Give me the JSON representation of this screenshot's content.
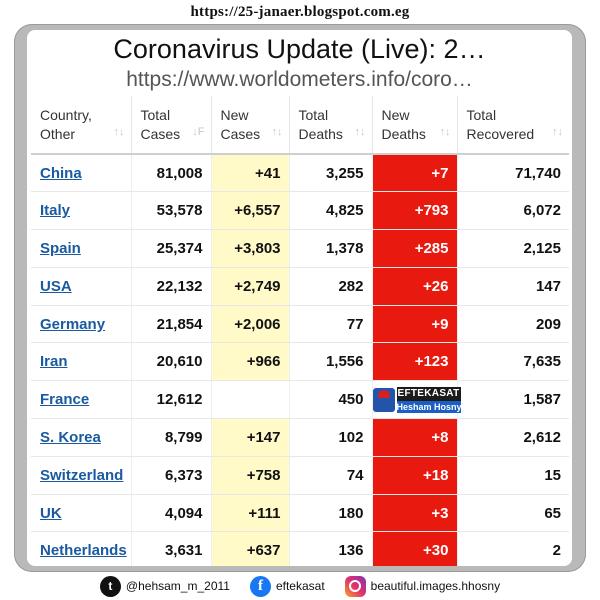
{
  "header": {
    "blog_url": "https://25-janaer.blogspot.com.eg",
    "title": "Coronavirus Update (Live): 2…",
    "subtitle": "https://www.worldometers.info/coro…"
  },
  "table": {
    "columns": [
      {
        "line1": "Country,",
        "line2": "Other",
        "sort": "↑↓"
      },
      {
        "line1": "Total",
        "line2": "Cases",
        "sort": "↓F"
      },
      {
        "line1": "New",
        "line2": "Cases",
        "sort": "↑↓"
      },
      {
        "line1": "Total",
        "line2": "Deaths",
        "sort": "↑↓"
      },
      {
        "line1": "New",
        "line2": "Deaths",
        "sort": "↑↓"
      },
      {
        "line1": "Total",
        "line2": "Recovered",
        "sort": "↑↓"
      }
    ],
    "rows": [
      {
        "country": "China",
        "total_cases": "81,008",
        "new_cases": "+41",
        "total_deaths": "3,255",
        "new_deaths": "+7",
        "total_recovered": "71,740"
      },
      {
        "country": "Italy",
        "total_cases": "53,578",
        "new_cases": "+6,557",
        "total_deaths": "4,825",
        "new_deaths": "+793",
        "total_recovered": "6,072"
      },
      {
        "country": "Spain",
        "total_cases": "25,374",
        "new_cases": "+3,803",
        "total_deaths": "1,378",
        "new_deaths": "+285",
        "total_recovered": "2,125"
      },
      {
        "country": "USA",
        "total_cases": "22,132",
        "new_cases": "+2,749",
        "total_deaths": "282",
        "new_deaths": "+26",
        "total_recovered": "147"
      },
      {
        "country": "Germany",
        "total_cases": "21,854",
        "new_cases": "+2,006",
        "total_deaths": "77",
        "new_deaths": "+9",
        "total_recovered": "209"
      },
      {
        "country": "Iran",
        "total_cases": "20,610",
        "new_cases": "+966",
        "total_deaths": "1,556",
        "new_deaths": "+123",
        "total_recovered": "7,635"
      },
      {
        "country": "France",
        "total_cases": "12,612",
        "new_cases": "",
        "total_deaths": "450",
        "new_deaths": "",
        "total_recovered": "1,587"
      },
      {
        "country": "S. Korea",
        "total_cases": "8,799",
        "new_cases": "+147",
        "total_deaths": "102",
        "new_deaths": "+8",
        "total_recovered": "2,612"
      },
      {
        "country": "Switzerland",
        "total_cases": "6,373",
        "new_cases": "+758",
        "total_deaths": "74",
        "new_deaths": "+18",
        "total_recovered": "15"
      },
      {
        "country": "UK",
        "total_cases": "4,094",
        "new_cases": "+111",
        "total_deaths": "180",
        "new_deaths": "+3",
        "total_recovered": "65"
      },
      {
        "country": "Netherlands",
        "total_cases": "3,631",
        "new_cases": "+637",
        "total_deaths": "136",
        "new_deaths": "+30",
        "total_recovered": "2"
      }
    ]
  },
  "watermark": {
    "top": "EFTEKASAT",
    "bottom": "Hesham Hosny",
    "icon": "avatar-logo-icon"
  },
  "socials": [
    {
      "icon": "twitter-icon",
      "glyph": "t",
      "handle": "@hehsam_m_2011"
    },
    {
      "icon": "facebook-icon",
      "glyph": "f",
      "handle": "eftekasat"
    },
    {
      "icon": "instagram-icon",
      "glyph": "",
      "handle": "beautiful.images.hhosny"
    }
  ],
  "colors": {
    "new_cases_bg": "#fffac8",
    "new_deaths_bg": "#e8190f",
    "country_link": "#1a5aa0",
    "frame": "#b9b9b9"
  }
}
